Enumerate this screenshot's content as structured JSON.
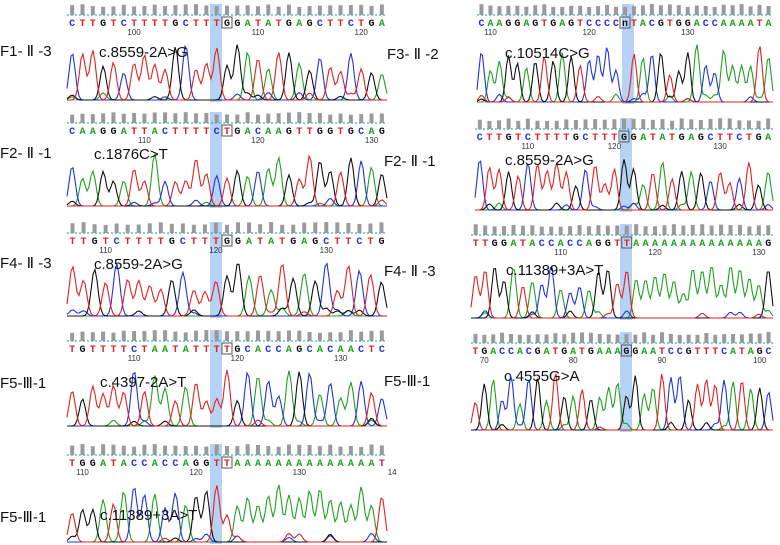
{
  "colors": {
    "A": "#1fa11f",
    "C": "#2233dd",
    "G": "#111111",
    "T": "#e02222",
    "highlight": "#9ec3f2",
    "bars": "#9a9a9a",
    "dotted": "#4aa9b5"
  },
  "panels": [
    {
      "id": "p1",
      "sample": "F1- Ⅱ -3",
      "mutation": "c.8559-2A>G",
      "sequence": "CTTGTCTTTTGCTTTGGATATGAGCTTCTGA",
      "highlight_index": 15,
      "boxed_index": 15,
      "positions": [
        {
          "label": "100",
          "index": 6
        },
        {
          "label": "110",
          "index": 18
        },
        {
          "label": "120",
          "index": 28
        }
      ]
    },
    {
      "id": "p2",
      "sample": "F2- Ⅱ -1",
      "mutation": "c.1876C>T",
      "sequence": "CAAGGATTACTTTTCTGACAAGTTGGTGCAG",
      "highlight_index": 15,
      "boxed_index": 15,
      "positions": [
        {
          "label": "110",
          "index": 7
        },
        {
          "label": "120",
          "index": 18
        },
        {
          "label": "130",
          "index": 29
        }
      ]
    },
    {
      "id": "p3",
      "sample": "F4- Ⅱ -3",
      "mutation": "c.8559-2A>G",
      "sequence": "TTGTCTTTTGCTTTGGATATGAGCTTCTG",
      "highlight_index": 14,
      "boxed_index": 14,
      "positions": [
        {
          "label": "110",
          "index": 3
        },
        {
          "label": "120",
          "index": 13
        },
        {
          "label": "130",
          "index": 23
        }
      ]
    },
    {
      "id": "p4",
      "sample": "F5-Ⅲ-1",
      "mutation": "c.4397-2A>T",
      "sequence": "TGTTTTCTAATATTTTGCACCAGCACAACTC",
      "highlight_index": 15,
      "boxed_index": 15,
      "positions": [
        {
          "label": "110",
          "index": 6
        },
        {
          "label": "120",
          "index": 16
        },
        {
          "label": "130",
          "index": 26
        }
      ]
    },
    {
      "id": "p5",
      "sample": "F5-Ⅲ-1",
      "mutation": "c.11389+3A>T",
      "sequence": "TGGATACCACCAGGTTAAAAAAAAAAAAAAT",
      "highlight_index": 15,
      "boxed_index": 15,
      "positions": [
        {
          "label": "110",
          "index": 1
        },
        {
          "label": "120",
          "index": 12
        },
        {
          "label": "130",
          "index": 22
        },
        {
          "label": "14",
          "index": 31
        }
      ]
    },
    {
      "id": "p6",
      "sample": "F3- Ⅱ -2",
      "mutation": "c.10514C>G",
      "sequence": "CAAGGAGTGAGTCCCCnTACGTGGACCAAAATA",
      "highlight_index": 16,
      "boxed_index": 16,
      "positions": [
        {
          "label": "110",
          "index": 1
        },
        {
          "label": "120",
          "index": 12
        },
        {
          "label": "130",
          "index": 23
        }
      ]
    },
    {
      "id": "p7",
      "sample": "F2- Ⅱ -1",
      "mutation": "c.8559-2A>G",
      "sequence": "CTTGTCTTTTGCTTTGGATATGAGCTTCTGA",
      "highlight_index": 15,
      "boxed_index": 15,
      "positions": [
        {
          "label": "110",
          "index": 5
        },
        {
          "label": "120",
          "index": 14
        },
        {
          "label": "130",
          "index": 25
        }
      ]
    },
    {
      "id": "p8",
      "sample": "F4- Ⅱ -3",
      "mutation": "c.11389+3A>T",
      "sequence": "TTGGATACCACCAGGTTAAAAAAAAAAAAAAG",
      "highlight_index": 16,
      "boxed_index": 16,
      "positions": [
        {
          "label": "110",
          "index": 9
        },
        {
          "label": "120",
          "index": 19
        },
        {
          "label": "130",
          "index": 30
        }
      ]
    },
    {
      "id": "p9",
      "sample": "F5-Ⅲ-1",
      "mutation": "c.4555G>A",
      "sequence": "TGACCACGATGATGAAAGGAATCCGTTTCATAGC",
      "highlight_index": 17,
      "boxed_index": 17,
      "positions": [
        {
          "label": "70",
          "index": 1
        },
        {
          "label": "80",
          "index": 11
        },
        {
          "label": "90",
          "index": 21
        },
        {
          "label": "100",
          "index": 32
        }
      ]
    }
  ]
}
